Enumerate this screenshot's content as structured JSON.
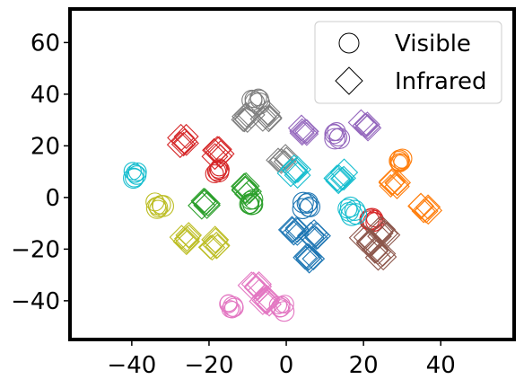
{
  "chart_data": {
    "type": "scatter",
    "title": "",
    "xlabel": "",
    "ylabel": "",
    "xlim": [
      -56,
      59
    ],
    "ylim": [
      -55,
      73
    ],
    "xticks": [
      -40,
      -20,
      0,
      20,
      40
    ],
    "yticks": [
      -40,
      -20,
      0,
      20,
      40,
      60
    ],
    "xtick_labels": [
      "−40",
      "−20",
      "0",
      "20",
      "40"
    ],
    "ytick_labels": [
      "−40",
      "−20",
      "0",
      "20",
      "40",
      "60"
    ],
    "grid": false,
    "legend": {
      "placement": "top-right",
      "entries": [
        {
          "label": "Visible",
          "marker": "circle"
        },
        {
          "label": "Infrared",
          "marker": "diamond"
        }
      ]
    },
    "series": [
      {
        "color": "#1f77b4",
        "clusters": [
          {
            "marker": "circle",
            "x": 5,
            "y": -3
          },
          {
            "marker": "diamond",
            "x": 2,
            "y": -13
          },
          {
            "marker": "diamond",
            "x": 7,
            "y": -15
          },
          {
            "marker": "diamond",
            "x": 6,
            "y": -24
          }
        ]
      },
      {
        "color": "#ff7f0e",
        "clusters": [
          {
            "marker": "circle",
            "x": 29,
            "y": 14
          },
          {
            "marker": "diamond",
            "x": 28,
            "y": 6
          },
          {
            "marker": "diamond",
            "x": 36,
            "y": -4
          }
        ]
      },
      {
        "color": "#2ca02c",
        "clusters": [
          {
            "marker": "circle",
            "x": -9,
            "y": -2
          },
          {
            "marker": "diamond",
            "x": -21,
            "y": -3
          },
          {
            "marker": "diamond",
            "x": -10,
            "y": 3
          }
        ]
      },
      {
        "color": "#d62728",
        "clusters": [
          {
            "marker": "circle",
            "x": -18,
            "y": 10
          },
          {
            "marker": "circle",
            "x": 22,
            "y": -9
          },
          {
            "marker": "diamond",
            "x": -27,
            "y": 22
          },
          {
            "marker": "diamond",
            "x": -18,
            "y": 17
          }
        ]
      },
      {
        "color": "#9467bd",
        "clusters": [
          {
            "marker": "circle",
            "x": 13,
            "y": 24
          },
          {
            "marker": "diamond",
            "x": 5,
            "y": 26
          },
          {
            "marker": "diamond",
            "x": 20,
            "y": 28
          }
        ]
      },
      {
        "color": "#8c564b",
        "clusters": [
          {
            "marker": "diamond",
            "x": 21,
            "y": -17
          },
          {
            "marker": "diamond",
            "x": 25,
            "y": -14
          },
          {
            "marker": "diamond",
            "x": 24,
            "y": -22
          }
        ]
      },
      {
        "color": "#e377c2",
        "clusters": [
          {
            "marker": "circle",
            "x": -14,
            "y": -42
          },
          {
            "marker": "circle",
            "x": -1,
            "y": -43
          },
          {
            "marker": "diamond",
            "x": -8,
            "y": -35
          },
          {
            "marker": "diamond",
            "x": -5,
            "y": -40
          }
        ]
      },
      {
        "color": "#7f7f7f",
        "clusters": [
          {
            "marker": "circle",
            "x": -8,
            "y": 38
          },
          {
            "marker": "diamond",
            "x": -10,
            "y": 31
          },
          {
            "marker": "diamond",
            "x": -5,
            "y": 32
          },
          {
            "marker": "diamond",
            "x": -1,
            "y": 14
          }
        ]
      },
      {
        "color": "#bcbd22",
        "clusters": [
          {
            "marker": "circle",
            "x": -33,
            "y": -3
          },
          {
            "marker": "diamond",
            "x": -26,
            "y": -16
          },
          {
            "marker": "diamond",
            "x": -19,
            "y": -18
          }
        ]
      },
      {
        "color": "#17becf",
        "clusters": [
          {
            "marker": "circle",
            "x": -39,
            "y": 9
          },
          {
            "marker": "circle",
            "x": 17,
            "y": -5
          },
          {
            "marker": "diamond",
            "x": 14,
            "y": 8
          },
          {
            "marker": "diamond",
            "x": 2,
            "y": 10
          }
        ]
      }
    ]
  }
}
